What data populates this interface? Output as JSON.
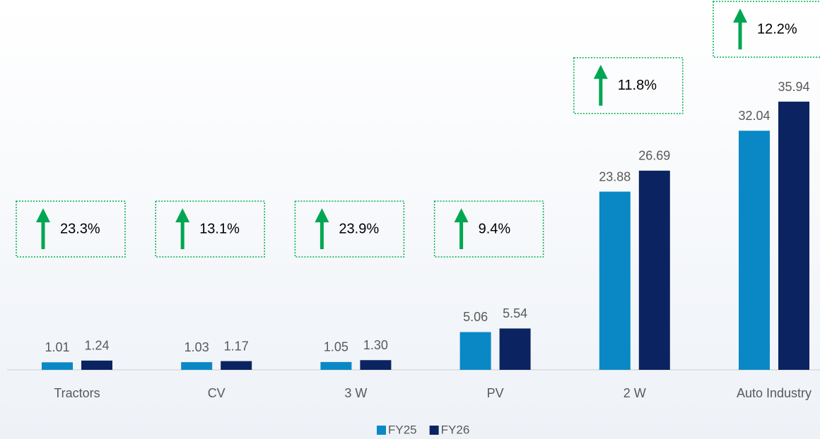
{
  "chart_data": {
    "type": "bar",
    "categories": [
      "Tractors",
      "CV",
      "3 W",
      "PV",
      "2 W",
      "Auto Industry"
    ],
    "series": [
      {
        "name": "FY25",
        "color": "#0a88c6",
        "values": [
          1.01,
          1.03,
          1.05,
          5.06,
          23.88,
          32.04
        ],
        "value_labels": [
          "1.01",
          "1.03",
          "1.05",
          "5.06",
          "23.88",
          "32.04"
        ]
      },
      {
        "name": "FY26",
        "color": "#0b2461",
        "values": [
          1.24,
          1.17,
          1.3,
          5.54,
          26.69,
          35.94
        ],
        "value_labels": [
          "1.24",
          "1.17",
          "1.30",
          "5.54",
          "26.69",
          "35.94"
        ]
      }
    ],
    "growth_labels": [
      "23.3%",
      "13.1%",
      "23.9%",
      "9.4%",
      "11.8%",
      "12.2%"
    ],
    "legend": "bottom"
  }
}
